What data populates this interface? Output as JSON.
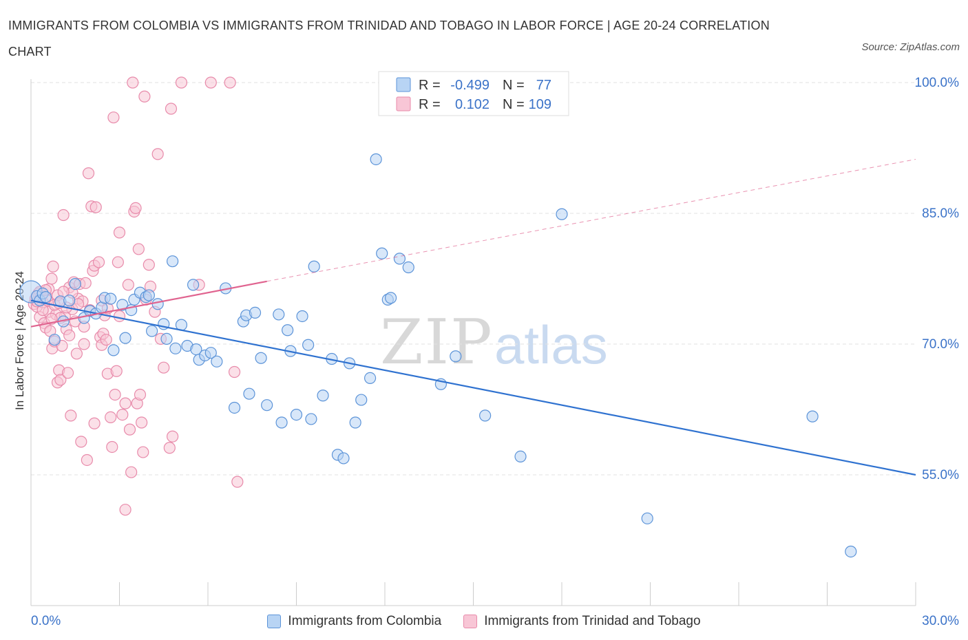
{
  "title": "IMMIGRANTS FROM COLOMBIA VS IMMIGRANTS FROM TRINIDAD AND TOBAGO IN LABOR FORCE | AGE 20-24 CORRELATION CHART",
  "source": "Source: ZipAtlas.com",
  "watermark": {
    "zip": "ZIP",
    "atlas": "atlas"
  },
  "colors": {
    "blue_fill": "#b8d4f4",
    "blue_stroke": "#5b93d8",
    "blue_line": "#2f72d0",
    "pink_fill": "#f8c6d6",
    "pink_stroke": "#e88aaa",
    "pink_line": "#e0638f",
    "axis_text": "#3a72c8"
  },
  "chart_data": {
    "type": "scatter",
    "title": "IMMIGRANTS FROM COLOMBIA VS IMMIGRANTS FROM TRINIDAD AND TOBAGO IN LABOR FORCE | AGE 20-24 CORRELATION CHART",
    "ylabel": "In Labor Force | Age 20-24",
    "xlabel": "",
    "xlim": [
      0,
      30
    ],
    "ylim": [
      40,
      100
    ],
    "x_tick_labels": [
      "0.0%",
      "30.0%"
    ],
    "y_ticks": [
      {
        "value": 100,
        "label": "100.0%"
      },
      {
        "value": 85,
        "label": "85.0%"
      },
      {
        "value": 70,
        "label": "70.0%"
      },
      {
        "value": 55,
        "label": "55.0%"
      }
    ],
    "grid": true,
    "legend_position": "top-center",
    "series": [
      {
        "name": "Immigrants from Colombia",
        "color": "blue",
        "R": "-0.499",
        "N": "77",
        "trend": {
          "x0": 0,
          "y0": 75.0,
          "x1": 30,
          "y1": 55.0
        },
        "points": [
          [
            0.0,
            76.0
          ],
          [
            0.2,
            75.5
          ],
          [
            0.3,
            75.0
          ],
          [
            0.4,
            75.8
          ],
          [
            0.5,
            75.4
          ],
          [
            0.8,
            70.5
          ],
          [
            1.0,
            74.9
          ],
          [
            1.1,
            72.6
          ],
          [
            1.3,
            75.0
          ],
          [
            1.5,
            76.9
          ],
          [
            1.8,
            73.0
          ],
          [
            2.0,
            73.8
          ],
          [
            2.2,
            73.5
          ],
          [
            2.4,
            74.2
          ],
          [
            2.5,
            75.3
          ],
          [
            2.7,
            75.2
          ],
          [
            2.8,
            69.3
          ],
          [
            3.1,
            74.5
          ],
          [
            3.2,
            70.7
          ],
          [
            3.4,
            73.9
          ],
          [
            3.5,
            75.1
          ],
          [
            3.7,
            75.9
          ],
          [
            3.9,
            75.4
          ],
          [
            4.0,
            75.6
          ],
          [
            4.1,
            71.5
          ],
          [
            4.3,
            74.6
          ],
          [
            4.5,
            72.3
          ],
          [
            4.6,
            70.6
          ],
          [
            4.8,
            79.5
          ],
          [
            4.9,
            69.5
          ],
          [
            5.1,
            72.2
          ],
          [
            5.3,
            69.8
          ],
          [
            5.5,
            76.8
          ],
          [
            5.6,
            69.4
          ],
          [
            5.7,
            68.2
          ],
          [
            5.9,
            68.7
          ],
          [
            6.1,
            69.0
          ],
          [
            6.3,
            68.0
          ],
          [
            6.6,
            76.4
          ],
          [
            6.9,
            62.7
          ],
          [
            7.2,
            72.6
          ],
          [
            7.3,
            73.3
          ],
          [
            7.4,
            64.3
          ],
          [
            7.6,
            73.6
          ],
          [
            7.8,
            68.4
          ],
          [
            8.0,
            63.0
          ],
          [
            8.4,
            73.4
          ],
          [
            8.5,
            61.0
          ],
          [
            8.7,
            71.6
          ],
          [
            8.8,
            69.2
          ],
          [
            9.0,
            61.9
          ],
          [
            9.2,
            73.2
          ],
          [
            9.4,
            69.9
          ],
          [
            9.5,
            61.4
          ],
          [
            9.6,
            78.9
          ],
          [
            9.9,
            64.1
          ],
          [
            10.2,
            68.3
          ],
          [
            10.4,
            57.3
          ],
          [
            10.6,
            56.9
          ],
          [
            10.8,
            67.8
          ],
          [
            11.0,
            61.0
          ],
          [
            11.2,
            63.6
          ],
          [
            11.5,
            66.1
          ],
          [
            11.9,
            80.4
          ],
          [
            12.1,
            75.1
          ],
          [
            12.2,
            75.3
          ],
          [
            12.5,
            79.8
          ],
          [
            12.8,
            78.8
          ],
          [
            11.7,
            91.2
          ],
          [
            13.9,
            65.4
          ],
          [
            14.4,
            68.6
          ],
          [
            15.4,
            61.8
          ],
          [
            16.6,
            57.1
          ],
          [
            18.0,
            84.9
          ],
          [
            20.9,
            50.0
          ],
          [
            26.5,
            61.7
          ],
          [
            27.8,
            46.2
          ]
        ]
      },
      {
        "name": "Immigrants from Trinidad and Tobago",
        "color": "pink",
        "R": "0.102",
        "N": "109",
        "trend": {
          "x0": 0,
          "y0": 72.0,
          "x1": 8.0,
          "y1": 77.2
        },
        "trend_dashed": {
          "x0": 8.0,
          "y0": 77.2,
          "x1": 30,
          "y1": 91.2
        },
        "points": [
          [
            0.1,
            74.6
          ],
          [
            0.15,
            75.2
          ],
          [
            0.2,
            74.3
          ],
          [
            0.25,
            75.8
          ],
          [
            0.3,
            73.1
          ],
          [
            0.35,
            75.5
          ],
          [
            0.4,
            74.8
          ],
          [
            0.45,
            72.4
          ],
          [
            0.5,
            71.9
          ],
          [
            0.55,
            75.0
          ],
          [
            0.6,
            73.7
          ],
          [
            0.65,
            71.5
          ],
          [
            0.7,
            77.5
          ],
          [
            0.72,
            69.5
          ],
          [
            0.75,
            78.9
          ],
          [
            0.8,
            70.3
          ],
          [
            0.85,
            73.4
          ],
          [
            0.9,
            65.6
          ],
          [
            0.95,
            67.0
          ],
          [
            1.0,
            65.9
          ],
          [
            1.05,
            69.8
          ],
          [
            1.1,
            84.8
          ],
          [
            1.15,
            73.2
          ],
          [
            1.2,
            71.7
          ],
          [
            1.25,
            66.7
          ],
          [
            1.3,
            76.5
          ],
          [
            1.35,
            61.8
          ],
          [
            1.4,
            74.0
          ],
          [
            1.45,
            77.1
          ],
          [
            1.5,
            72.6
          ],
          [
            1.55,
            68.9
          ],
          [
            1.6,
            75.2
          ],
          [
            1.65,
            76.9
          ],
          [
            1.7,
            58.8
          ],
          [
            1.75,
            74.9
          ],
          [
            1.8,
            72.0
          ],
          [
            1.85,
            77.0
          ],
          [
            1.9,
            56.7
          ],
          [
            1.95,
            89.6
          ],
          [
            2.0,
            73.9
          ],
          [
            2.05,
            85.8
          ],
          [
            2.1,
            78.4
          ],
          [
            2.15,
            79.0
          ],
          [
            2.2,
            85.7
          ],
          [
            2.3,
            79.4
          ],
          [
            2.35,
            70.8
          ],
          [
            2.4,
            69.9
          ],
          [
            2.45,
            71.2
          ],
          [
            2.5,
            73.3
          ],
          [
            2.55,
            70.5
          ],
          [
            2.6,
            66.6
          ],
          [
            2.7,
            61.6
          ],
          [
            2.75,
            58.2
          ],
          [
            2.85,
            64.2
          ],
          [
            2.9,
            66.9
          ],
          [
            2.95,
            79.4
          ],
          [
            2.8,
            96.0
          ],
          [
            3.0,
            82.8
          ],
          [
            3.1,
            61.9
          ],
          [
            3.2,
            63.2
          ],
          [
            3.3,
            76.8
          ],
          [
            3.35,
            60.2
          ],
          [
            3.4,
            55.3
          ],
          [
            3.45,
            100.0
          ],
          [
            3.2,
            51.0
          ],
          [
            3.5,
            85.2
          ],
          [
            3.55,
            85.6
          ],
          [
            3.6,
            63.2
          ],
          [
            3.65,
            80.9
          ],
          [
            3.7,
            64.2
          ],
          [
            3.75,
            61.0
          ],
          [
            3.8,
            57.6
          ],
          [
            3.85,
            98.4
          ],
          [
            3.9,
            75.1
          ],
          [
            4.0,
            79.1
          ],
          [
            4.05,
            76.6
          ],
          [
            4.2,
            73.7
          ],
          [
            4.3,
            91.8
          ],
          [
            4.4,
            70.6
          ],
          [
            4.5,
            67.3
          ],
          [
            4.75,
            97.0
          ],
          [
            4.7,
            58.1
          ],
          [
            4.8,
            59.4
          ],
          [
            5.1,
            100.0
          ],
          [
            5.7,
            76.8
          ],
          [
            6.1,
            100.0
          ],
          [
            6.75,
            100.0
          ],
          [
            6.9,
            66.8
          ],
          [
            7.0,
            54.2
          ],
          [
            2.15,
            60.9
          ],
          [
            1.2,
            74.2
          ],
          [
            0.9,
            75.6
          ],
          [
            0.6,
            76.3
          ],
          [
            1.0,
            73.0
          ],
          [
            0.4,
            73.9
          ],
          [
            1.6,
            74.6
          ],
          [
            2.4,
            75.0
          ],
          [
            0.3,
            76.0
          ],
          [
            0.2,
            74.9
          ],
          [
            1.8,
            70.0
          ],
          [
            1.3,
            71.0
          ],
          [
            0.8,
            74.5
          ],
          [
            0.5,
            76.2
          ],
          [
            1.4,
            75.9
          ],
          [
            2.6,
            74.1
          ],
          [
            3.0,
            73.2
          ],
          [
            0.7,
            72.9
          ],
          [
            1.1,
            76.0
          ],
          [
            0.95,
            74.7
          ]
        ]
      }
    ]
  }
}
